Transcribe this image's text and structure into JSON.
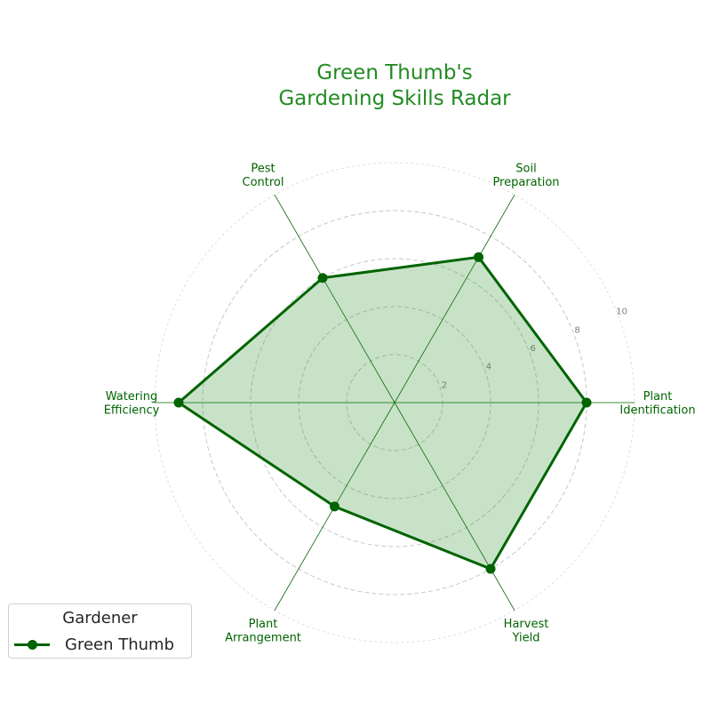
{
  "chart_data": {
    "type": "radar",
    "title": "Green Thumb's\nGardening Skills Radar",
    "categories": [
      "Plant\nIdentification",
      "Soil\nPreparation",
      "Pest\nControl",
      "Watering\nEfficiency",
      "Plant\nArrangement",
      "Harvest\nYield"
    ],
    "series": [
      {
        "name": "Green Thumb",
        "values": [
          8,
          7,
          6,
          9,
          5,
          8
        ]
      }
    ],
    "rlim": [
      0,
      10
    ],
    "rticks": [
      2,
      4,
      6,
      8,
      10
    ],
    "grid": true,
    "legend": {
      "title": "Gardener",
      "position": "lower-left"
    },
    "colors": {
      "title": "#228b22",
      "line": "#006400",
      "fill": "#228b22",
      "axis": "#006400",
      "grid": "#c8c8c8",
      "tick_label": "#808080"
    }
  }
}
